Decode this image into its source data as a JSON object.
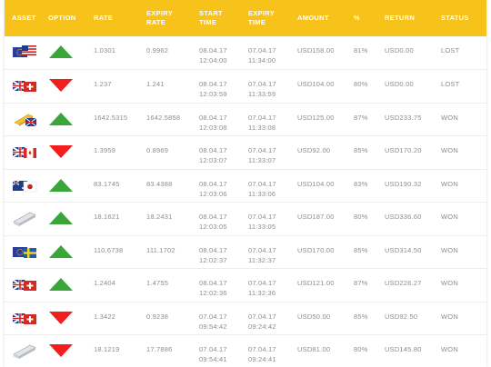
{
  "colors": {
    "header_bg": "#f7c21a",
    "header_text": "#ffffff",
    "call": "#3aa63a",
    "put": "#f21d1d",
    "text": "#8d8d8d"
  },
  "headers": {
    "asset": "ASSET",
    "option": "OPTION",
    "rate": "RATE",
    "expiry_rate_1": "EXPIRY",
    "expiry_rate_2": "RATE",
    "start_time_1": "START",
    "start_time_2": "TIME",
    "expiry_time_1": "EXPIRY",
    "expiry_time_2": "TIME",
    "amount": "AMOUNT",
    "percent": "%",
    "return": "RETURN",
    "status": "STATUS"
  },
  "rows": [
    {
      "asset_icon": "eu-us-flag-icon",
      "option": "up",
      "rate": "1.0301",
      "expiry_rate": "0.9962",
      "start_date": "08.04.17",
      "start_time": "12:04:00",
      "expiry_date": "07.04.17",
      "expiry_time": "11:34:00",
      "amount": "USD158.00",
      "percent": "81%",
      "return": "USD0.00",
      "status": "LOST"
    },
    {
      "asset_icon": "uk-ch-flag-icon",
      "option": "down",
      "rate": "1.237",
      "expiry_rate": "1.241",
      "start_date": "08.04.17",
      "start_time": "12:03:59",
      "expiry_date": "07.04.17",
      "expiry_time": "11:33:59",
      "amount": "USD104.00",
      "percent": "80%",
      "return": "USD0.00",
      "status": "LOST"
    },
    {
      "asset_icon": "gold-bar-flag-icon",
      "option": "up",
      "rate": "1642.5315",
      "expiry_rate": "1642.5858",
      "start_date": "08.04.17",
      "start_time": "12:03:08",
      "expiry_date": "07.04.17",
      "expiry_time": "11:33:08",
      "amount": "USD125.00",
      "percent": "87%",
      "return": "USD233.75",
      "status": "WON"
    },
    {
      "asset_icon": "uk-ca-flag-icon",
      "option": "down",
      "rate": "1.3959",
      "expiry_rate": "0.8969",
      "start_date": "08.04.17",
      "start_time": "12:03:07",
      "expiry_date": "07.04.17",
      "expiry_time": "11:33:07",
      "amount": "USD92.00",
      "percent": "85%",
      "return": "USD170.20",
      "status": "WON"
    },
    {
      "asset_icon": "au-jp-flag-icon",
      "option": "up",
      "rate": "83.1745",
      "expiry_rate": "83.4388",
      "start_date": "08.04.17",
      "start_time": "12:03:06",
      "expiry_date": "07.04.17",
      "expiry_time": "11:33:06",
      "amount": "USD104.00",
      "percent": "83%",
      "return": "USD190.32",
      "status": "WON"
    },
    {
      "asset_icon": "silver-bar-icon",
      "option": "up",
      "rate": "18.1621",
      "expiry_rate": "18.2431",
      "start_date": "08.04.17",
      "start_time": "12:03:05",
      "expiry_date": "07.04.17",
      "expiry_time": "11:33:05",
      "amount": "USD187.00",
      "percent": "80%",
      "return": "USD336.60",
      "status": "WON"
    },
    {
      "asset_icon": "eu-se-flag-icon",
      "option": "up",
      "rate": "110.6738",
      "expiry_rate": "111.1702",
      "start_date": "08.04.17",
      "start_time": "12:02:37",
      "expiry_date": "07.04.17",
      "expiry_time": "11:32:37",
      "amount": "USD170.00",
      "percent": "85%",
      "return": "USD314.50",
      "status": "WON"
    },
    {
      "asset_icon": "uk-ch-flag-icon",
      "option": "up",
      "rate": "1.2404",
      "expiry_rate": "1.4755",
      "start_date": "08.04.17",
      "start_time": "12:02:36",
      "expiry_date": "07.04.17",
      "expiry_time": "11:32:36",
      "amount": "USD121.00",
      "percent": "87%",
      "return": "USD226.27",
      "status": "WON"
    },
    {
      "asset_icon": "uk-ch-flag-icon",
      "option": "down",
      "rate": "1.3422",
      "expiry_rate": "0.9238",
      "start_date": "07.04.17",
      "start_time": "09:54:42",
      "expiry_date": "07.04.17",
      "expiry_time": "09:24:42",
      "amount": "USD50.00",
      "percent": "85%",
      "return": "USD92.50",
      "status": "WON"
    },
    {
      "asset_icon": "silver-bar-icon",
      "option": "down",
      "rate": "18.1219",
      "expiry_rate": "17.7886",
      "start_date": "07.04.17",
      "start_time": "09:54:41",
      "expiry_date": "07.04.17",
      "expiry_time": "09:24:41",
      "amount": "USD81.00",
      "percent": "80%",
      "return": "USD145.80",
      "status": "WON"
    }
  ]
}
